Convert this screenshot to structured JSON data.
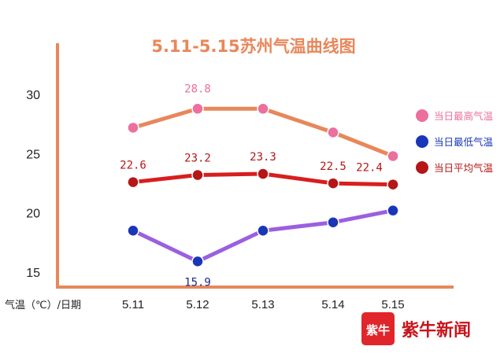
{
  "chart_data": {
    "type": "line",
    "title": "5.11-5.15苏州气温曲线图",
    "axis_label": "气温（℃）/日期",
    "categories": [
      "5.11",
      "5.12",
      "5.13",
      "5.14",
      "5.15"
    ],
    "y_ticks": [
      15,
      20,
      25,
      30
    ],
    "ylim": [
      13,
      35
    ],
    "grid": false,
    "legend_position": "right",
    "series": [
      {
        "name": "当日最高气温",
        "values": [
          27.2,
          28.8,
          28.8,
          26.8,
          24.8
        ],
        "line_color": "#e8875a",
        "marker_color": "#ec6f9d",
        "labels": [
          "",
          "28.8",
          "",
          "",
          ""
        ],
        "label_color": "#ec6f9d"
      },
      {
        "name": "当日最低气温",
        "values": [
          18.5,
          15.9,
          18.5,
          19.2,
          20.2
        ],
        "line_color": "#9b5fe0",
        "marker_color": "#1936b8",
        "labels": [
          "",
          "15.9",
          "",
          "",
          ""
        ],
        "label_color": "#1d2b8a"
      },
      {
        "name": "当日平均气温",
        "values": [
          22.6,
          23.2,
          23.3,
          22.5,
          22.4
        ],
        "line_color": "#d81e1e",
        "marker_color": "#b51616",
        "labels": [
          "22.6",
          "23.2",
          "23.3",
          "22.5",
          "22.4"
        ],
        "label_color": "#b51616"
      }
    ],
    "axis_color": "#e8875a",
    "title_color": "#e8875a"
  },
  "brand": {
    "logo_char": "紫牛",
    "name": "紫牛新闻",
    "color": "#e0262b"
  }
}
